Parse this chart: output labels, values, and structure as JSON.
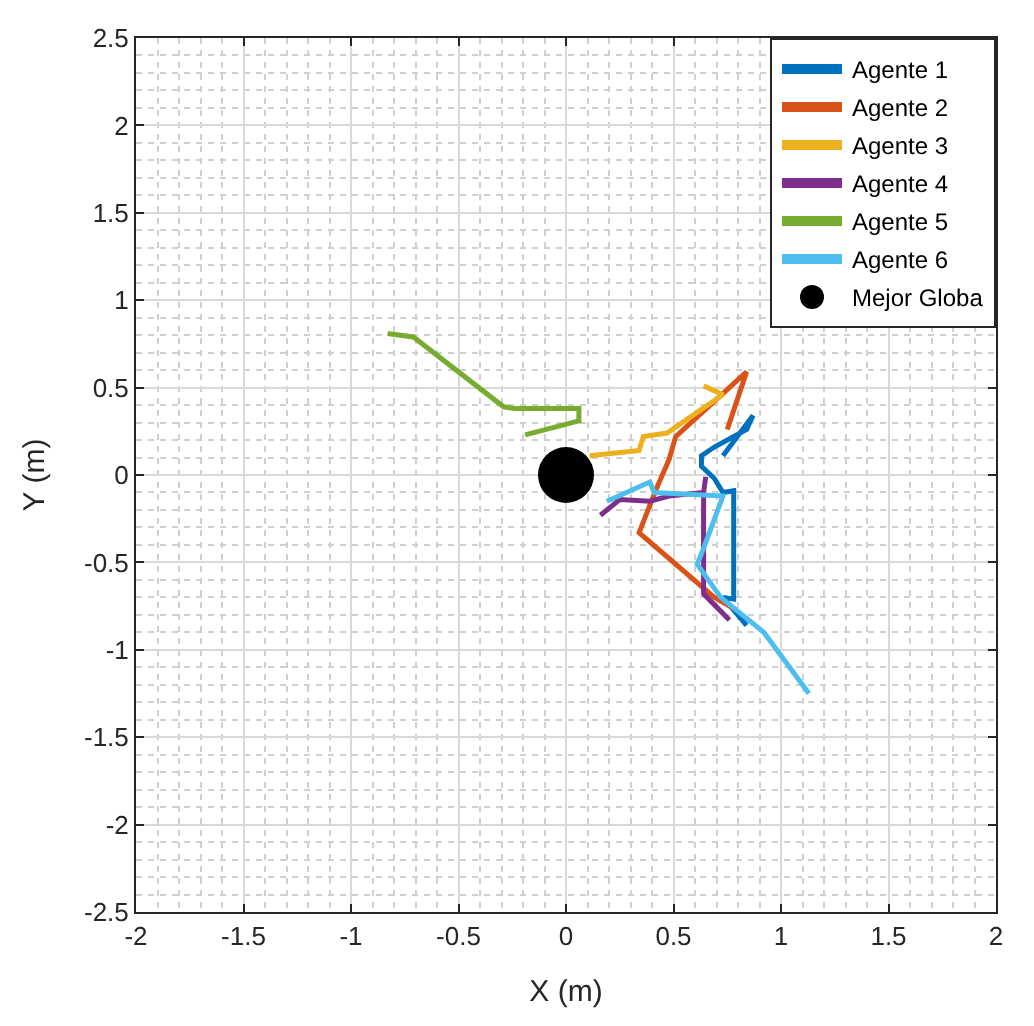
{
  "chart_data": {
    "type": "line",
    "xlabel": "X (m)",
    "ylabel": "Y (m)",
    "xlim": [
      -2,
      2
    ],
    "ylim": [
      -2.5,
      2.5
    ],
    "xticks": [
      -2,
      -1.5,
      -1,
      -0.5,
      0,
      0.5,
      1,
      1.5,
      2
    ],
    "yticks": [
      -2.5,
      -2,
      -1.5,
      -1,
      -0.5,
      0,
      0.5,
      1,
      1.5,
      2,
      2.5
    ],
    "grid": true,
    "legend": "top right",
    "marker": "none",
    "line_style": "solid",
    "series": [
      {
        "name": "Agente 1",
        "color": "#0072bd",
        "x": [
          0.73,
          0.87,
          0.84,
          0.69,
          0.63,
          0.63,
          0.69,
          0.73,
          0.78,
          0.78,
          0.73,
          0.84
        ],
        "values": [
          0.11,
          0.34,
          0.26,
          0.16,
          0.11,
          0.05,
          -0.02,
          -0.1,
          -0.09,
          -0.71,
          -0.7,
          -0.86
        ]
      },
      {
        "name": "Agente 2",
        "color": "#d95319",
        "x": [
          0.75,
          0.84,
          0.51,
          0.48,
          0.42,
          0.34,
          0.69,
          0.79
        ],
        "values": [
          0.26,
          0.59,
          0.22,
          0.09,
          -0.08,
          -0.33,
          -0.7,
          -0.77
        ]
      },
      {
        "name": "Agente 3",
        "color": "#edb120",
        "x": [
          0.11,
          0.34,
          0.36,
          0.47,
          0.73,
          0.64
        ],
        "values": [
          0.11,
          0.14,
          0.22,
          0.24,
          0.46,
          0.51
        ]
      },
      {
        "name": "Agente 4",
        "color": "#7e2f8e",
        "x": [
          0.16,
          0.25,
          0.39,
          0.48,
          0.64,
          0.65,
          0.64,
          0.64,
          0.76
        ],
        "values": [
          -0.23,
          -0.14,
          -0.15,
          -0.12,
          -0.1,
          -0.01,
          -0.1,
          -0.68,
          -0.83
        ]
      },
      {
        "name": "Agente 5",
        "color": "#77ac30",
        "x": [
          -0.83,
          -0.71,
          -0.29,
          -0.24,
          0.05,
          0.06,
          0.06,
          0.05,
          0.06,
          -0.19
        ],
        "values": [
          0.81,
          0.79,
          0.39,
          0.38,
          0.38,
          0.38,
          0.31,
          0.31,
          0.31,
          0.23
        ]
      },
      {
        "name": "Agente 6",
        "color": "#4dbeee",
        "x": [
          0.19,
          0.39,
          0.41,
          0.73,
          0.64,
          0.61,
          0.72,
          0.92,
          1.13
        ],
        "values": [
          -0.15,
          -0.04,
          -0.1,
          -0.12,
          -0.42,
          -0.51,
          -0.7,
          -0.9,
          -1.25
        ]
      },
      {
        "name": "Mejor Globa",
        "type": "scatter",
        "marker": "circle",
        "color": "#000000",
        "x": [
          0
        ],
        "values": [
          0
        ]
      }
    ]
  }
}
